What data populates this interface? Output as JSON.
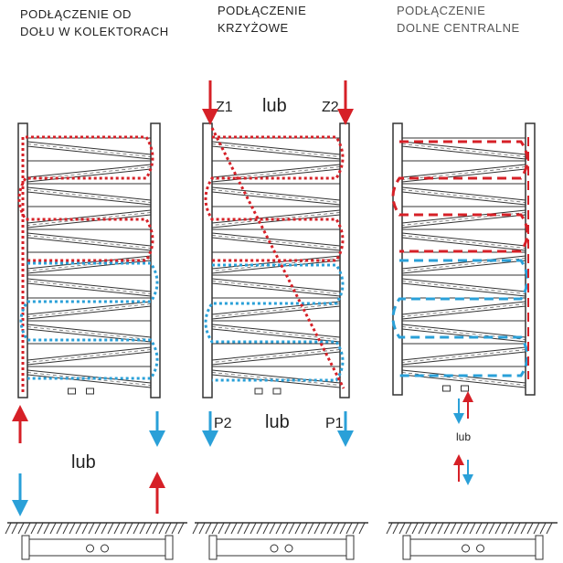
{
  "panels": [
    {
      "title": [
        "PODŁĄCZENIE OD",
        "DOŁU W KOLEKTORACH"
      ],
      "or_label": "lub"
    },
    {
      "title": [
        "PODŁĄCZENIE",
        "KRZYŻOWE"
      ],
      "top_left": "Z1",
      "top_or": "lub",
      "top_right": "Z2",
      "bottom_left": "P2",
      "bottom_or": "lub",
      "bottom_right": "P1"
    },
    {
      "title": [
        "PODŁĄCZENIE",
        "DOLNE CENTRALNE"
      ],
      "or_label": "lub"
    }
  ]
}
